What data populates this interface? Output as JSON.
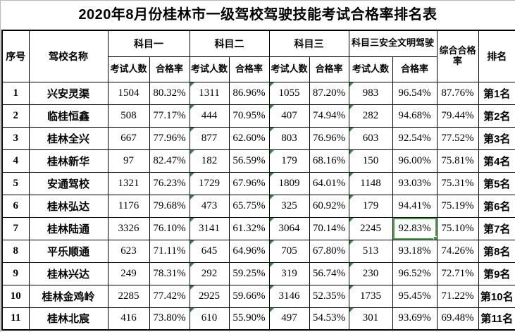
{
  "title": "2020年8月份桂林市一级驾校驾驶技能考试合格率排名表",
  "table": {
    "header": {
      "serial": "序号",
      "school": "驾校名称",
      "groups": [
        {
          "label": "科目一"
        },
        {
          "label": "科目二"
        },
        {
          "label": "科目三"
        },
        {
          "label": "科目三安全文明驾驶"
        }
      ],
      "sub_exam_count": "考试人数",
      "sub_pass_rate": "合格率",
      "overall": "综合合格率",
      "rank": "排名"
    },
    "column_keys": [
      "no",
      "school",
      "s1_count",
      "s1_rate",
      "s2_count",
      "s2_rate",
      "s3_count",
      "s3_rate",
      "s3safe_count",
      "s3safe_rate",
      "overall",
      "rank"
    ],
    "error_marker_columns": [
      "s2_count",
      "s3_count",
      "s3safe_count"
    ],
    "selection": {
      "row_index": 6,
      "column": "s3safe_rate"
    },
    "rows": [
      {
        "no": "1",
        "school": "兴安灵渠",
        "s1_count": "1504",
        "s1_rate": "80.32%",
        "s2_count": "1311",
        "s2_rate": "86.96%",
        "s3_count": "1055",
        "s3_rate": "87.20%",
        "s3safe_count": "983",
        "s3safe_rate": "96.54%",
        "overall": "87.76%",
        "rank": "第1名"
      },
      {
        "no": "2",
        "school": "临桂恒鑫",
        "s1_count": "508",
        "s1_rate": "77.17%",
        "s2_count": "444",
        "s2_rate": "70.95%",
        "s3_count": "407",
        "s3_rate": "74.94%",
        "s3safe_count": "282",
        "s3safe_rate": "94.68%",
        "overall": "79.44%",
        "rank": "第2名"
      },
      {
        "no": "3",
        "school": "桂林全兴",
        "s1_count": "667",
        "s1_rate": "77.96%",
        "s2_count": "877",
        "s2_rate": "62.60%",
        "s3_count": "803",
        "s3_rate": "76.96%",
        "s3safe_count": "603",
        "s3safe_rate": "92.54%",
        "overall": "77.52%",
        "rank": "第3名"
      },
      {
        "no": "4",
        "school": "桂林新华",
        "s1_count": "97",
        "s1_rate": "82.47%",
        "s2_count": "182",
        "s2_rate": "56.59%",
        "s3_count": "179",
        "s3_rate": "68.16%",
        "s3safe_count": "150",
        "s3safe_rate": "96.00%",
        "overall": "75.81%",
        "rank": "第4名"
      },
      {
        "no": "5",
        "school": "安通驾校",
        "s1_count": "1321",
        "s1_rate": "76.23%",
        "s2_count": "1729",
        "s2_rate": "67.96%",
        "s3_count": "1809",
        "s3_rate": "64.01%",
        "s3safe_count": "1148",
        "s3safe_rate": "93.03%",
        "overall": "75.31%",
        "rank": "第5名"
      },
      {
        "no": "6",
        "school": "桂林弘达",
        "s1_count": "1176",
        "s1_rate": "79.68%",
        "s2_count": "473",
        "s2_rate": "65.75%",
        "s3_count": "325",
        "s3_rate": "60.92%",
        "s3safe_count": "179",
        "s3safe_rate": "94.41%",
        "overall": "75.19%",
        "rank": "第6名"
      },
      {
        "no": "7",
        "school": "桂林陆通",
        "s1_count": "3326",
        "s1_rate": "76.10%",
        "s2_count": "3141",
        "s2_rate": "61.32%",
        "s3_count": "3064",
        "s3_rate": "70.14%",
        "s3safe_count": "2245",
        "s3safe_rate": "92.83%",
        "overall": "75.10%",
        "rank": "第7名"
      },
      {
        "no": "8",
        "school": "平乐顺通",
        "s1_count": "623",
        "s1_rate": "71.11%",
        "s2_count": "645",
        "s2_rate": "64.96%",
        "s3_count": "705",
        "s3_rate": "67.80%",
        "s3safe_count": "513",
        "s3safe_rate": "93.18%",
        "overall": "74.26%",
        "rank": "第8名"
      },
      {
        "no": "9",
        "school": "桂林兴达",
        "s1_count": "249",
        "s1_rate": "78.31%",
        "s2_count": "292",
        "s2_rate": "59.25%",
        "s3_count": "319",
        "s3_rate": "56.74%",
        "s3safe_count": "230",
        "s3safe_rate": "96.52%",
        "overall": "72.71%",
        "rank": "第9名"
      },
      {
        "no": "10",
        "school": "桂林金鸡岭",
        "s1_count": "2285",
        "s1_rate": "77.42%",
        "s2_count": "2925",
        "s2_rate": "59.66%",
        "s3_count": "3146",
        "s3_rate": "52.35%",
        "s3safe_count": "1735",
        "s3safe_rate": "95.45%",
        "overall": "71.22%",
        "rank": "第10名"
      },
      {
        "no": "11",
        "school": "桂林北宸",
        "s1_count": "416",
        "s1_rate": "73.80%",
        "s2_count": "610",
        "s2_rate": "55.90%",
        "s3_count": "497",
        "s3_rate": "54.53%",
        "s3safe_count": "301",
        "s3safe_rate": "93.69%",
        "overall": "69.48%",
        "rank": "第11名"
      }
    ],
    "colors": {
      "selection_green": "#42a045",
      "error_indicator_green": "#2e8b3a",
      "border": "#000000",
      "gridline_gray": "#b9b9b9"
    }
  }
}
